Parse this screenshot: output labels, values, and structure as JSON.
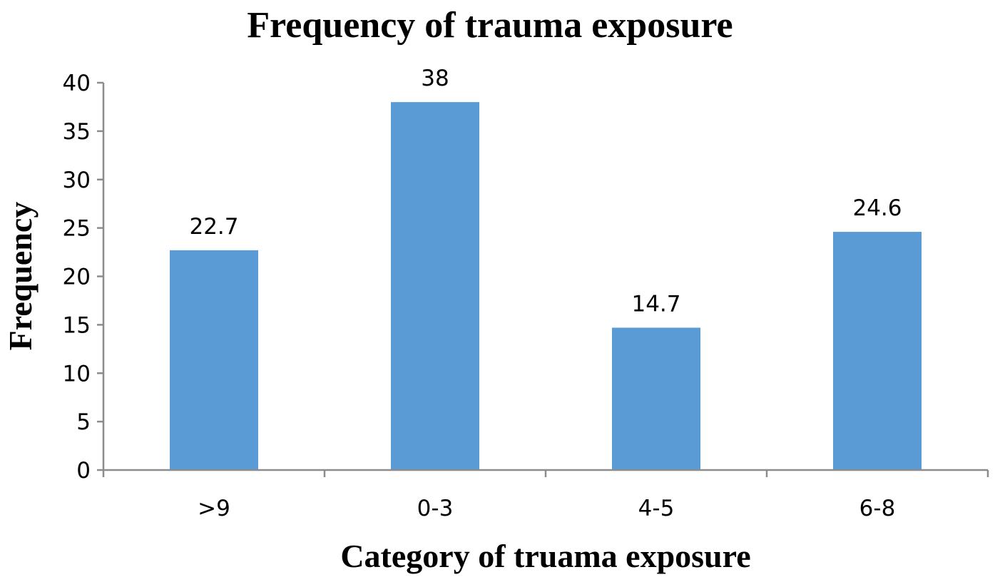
{
  "chart_data": {
    "type": "bar",
    "title": "Frequency of trauma exposure",
    "xlabel": "Category of truama exposure",
    "ylabel": "Frequency",
    "categories": [
      ">9",
      "0-3",
      "4-5",
      "6-8"
    ],
    "values": [
      22.7,
      38,
      14.7,
      24.6
    ],
    "data_labels": [
      "22.7",
      "38",
      "14.7",
      "24.6"
    ],
    "ylim": [
      0,
      40
    ],
    "yticks": [
      0,
      5,
      10,
      15,
      20,
      25,
      30,
      35,
      40
    ],
    "grid": false,
    "legend": "none",
    "bar_color": "#5b9bd5",
    "axis_color": "#8c8c8c"
  }
}
